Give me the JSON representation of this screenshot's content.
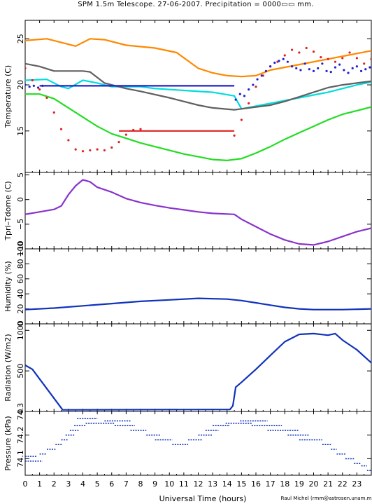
{
  "title": "SPM 1.5m Telescope. 27-06-2007. Precipitation = 0000▭▭ mm.",
  "xlabel": "Universal Time (hours)",
  "credit": "Raul Michel (rmm@astrosen.unam.mx)",
  "x_ticks": [
    "0",
    "1",
    "2",
    "3",
    "4",
    "5",
    "6",
    "7",
    "8",
    "9",
    "10",
    "11",
    "12",
    "13",
    "14",
    "15",
    "16",
    "17",
    "18",
    "19",
    "20",
    "21",
    "22",
    "23"
  ],
  "chart_data": [
    {
      "type": "line",
      "ylabel": "Temperature (C)",
      "xlim": [
        0,
        24
      ],
      "ylim": [
        10.5,
        27
      ],
      "y_ticks": [
        15,
        20,
        25
      ],
      "series": [
        {
          "color": "#ff8800",
          "style": "line",
          "x": [
            0,
            1.5,
            2.5,
            3.5,
            4.5,
            5.5,
            7,
            9,
            10.5,
            12,
            13,
            14,
            15,
            16,
            17,
            24
          ],
          "y": [
            24.8,
            25.0,
            24.6,
            24.2,
            25.0,
            24.9,
            24.3,
            24.0,
            23.5,
            21.8,
            21.3,
            21.0,
            20.9,
            21.0,
            21.6,
            23.7
          ]
        },
        {
          "color": "#00dddd",
          "style": "line",
          "x": [
            0,
            1.5,
            2.5,
            3,
            4,
            5,
            6,
            7,
            8,
            9,
            11,
            13,
            14.5,
            15,
            16,
            17,
            18,
            19,
            20,
            21,
            22,
            23,
            24
          ],
          "y": [
            20.5,
            20.6,
            19.8,
            19.6,
            20.5,
            20.2,
            19.8,
            19.8,
            19.8,
            19.6,
            19.4,
            19.2,
            18.8,
            17.4,
            17.7,
            18.0,
            18.3,
            18.6,
            18.9,
            19.2,
            19.6,
            20.0,
            20.3
          ]
        },
        {
          "color": "#606060",
          "style": "line",
          "x": [
            0,
            1,
            2,
            3,
            4,
            4.5,
            5.5,
            7,
            8,
            10,
            12,
            13,
            14.5,
            15,
            16,
            17,
            18,
            19,
            20,
            21,
            22,
            23,
            24
          ],
          "y": [
            22.3,
            22.0,
            21.5,
            21.5,
            21.5,
            21.4,
            20.2,
            19.6,
            19.3,
            18.6,
            17.8,
            17.5,
            17.3,
            17.4,
            17.6,
            17.8,
            18.2,
            18.7,
            19.2,
            19.7,
            20.0,
            20.2,
            20.4
          ]
        },
        {
          "color": "#22dd22",
          "style": "line",
          "x": [
            0,
            1,
            2,
            3,
            4,
            5,
            6,
            7,
            8,
            9,
            10,
            11,
            12,
            13,
            14,
            15,
            16,
            17,
            18,
            19,
            20,
            21,
            22,
            23,
            24
          ],
          "y": [
            19.0,
            19.0,
            18.5,
            17.5,
            16.5,
            15.5,
            14.7,
            14.2,
            13.7,
            13.3,
            12.9,
            12.5,
            12.2,
            11.9,
            11.8,
            12.0,
            12.6,
            13.3,
            14.1,
            14.8,
            15.5,
            16.2,
            16.8,
            17.2,
            17.6
          ]
        },
        {
          "color": "#2222cc",
          "style": "line",
          "x": [
            1,
            14.5
          ],
          "y": [
            19.9,
            19.9
          ]
        },
        {
          "color": "#dd2222",
          "style": "line",
          "x": [
            6.5,
            14.5
          ],
          "y": [
            15.0,
            15.0
          ]
        },
        {
          "color": "#dd2222",
          "style": "scatter",
          "x": [
            0,
            0.5,
            1,
            1.5,
            2,
            2.5,
            3,
            3.5,
            4,
            4.5,
            5,
            5.5,
            6,
            6.5,
            7,
            7.5,
            8,
            14.5,
            15,
            15.5,
            16,
            16.5,
            17,
            17.5,
            18,
            18.5,
            19,
            19.5,
            20,
            20.5,
            21,
            21.5,
            22,
            22.5,
            23,
            23.5,
            24
          ],
          "y": [
            21.8,
            20.5,
            19.5,
            18.6,
            17.0,
            15.2,
            14.0,
            13.0,
            12.8,
            12.9,
            13.0,
            12.9,
            13.2,
            13.8,
            14.6,
            15.1,
            15.2,
            14.5,
            16.2,
            18.0,
            19.8,
            21.0,
            22.0,
            22.5,
            23.2,
            23.8,
            23.5,
            24.0,
            23.6,
            23.0,
            22.8,
            22.5,
            22.9,
            23.5,
            22.9,
            22.3,
            22.8
          ]
        },
        {
          "color": "#2222cc",
          "style": "scatter",
          "x": [
            0,
            0.3,
            0.6,
            0.9,
            1.2,
            14.6,
            14.9,
            15.2,
            15.5,
            15.8,
            16.1,
            16.4,
            16.7,
            17.0,
            17.3,
            17.6,
            17.9,
            18.2,
            18.5,
            18.8,
            19.1,
            19.4,
            19.7,
            20.0,
            20.3,
            20.6,
            20.9,
            21.2,
            21.5,
            21.8,
            22.1,
            22.4,
            22.7,
            23.0,
            23.3,
            23.6,
            23.9
          ],
          "y": [
            20.0,
            19.8,
            19.9,
            19.7,
            19.9,
            18.4,
            19.0,
            18.8,
            19.5,
            20.0,
            20.6,
            21.0,
            21.5,
            22.0,
            22.4,
            22.6,
            22.8,
            22.5,
            22.0,
            21.8,
            21.6,
            22.3,
            21.7,
            21.5,
            21.8,
            22.3,
            21.5,
            21.4,
            21.9,
            22.2,
            21.6,
            21.3,
            21.8,
            22.0,
            21.5,
            21.7,
            21.9
          ]
        }
      ]
    },
    {
      "type": "line",
      "ylabel": "Tpri–Tdome (C)",
      "xlim": [
        0,
        24
      ],
      "ylim": [
        -10,
        5.5
      ],
      "y_ticks": [
        -10,
        -5,
        0,
        5
      ],
      "y_tick_labels": [
        "−10",
        "−5",
        "0",
        "5"
      ],
      "series": [
        {
          "color": "#8833cc",
          "style": "line",
          "x": [
            0,
            1,
            2,
            2.5,
            3,
            3.5,
            4,
            4.5,
            5,
            6,
            7,
            8,
            9,
            10,
            11,
            12,
            13,
            14.5,
            15,
            16,
            17,
            18,
            19,
            20,
            21,
            22,
            23,
            24
          ],
          "y": [
            -3.0,
            -2.5,
            -2.0,
            -1.3,
            1.0,
            2.8,
            4.0,
            3.6,
            2.5,
            1.5,
            0.2,
            -0.6,
            -1.2,
            -1.7,
            -2.1,
            -2.5,
            -2.8,
            -3.0,
            -4.0,
            -5.5,
            -7.0,
            -8.2,
            -9.0,
            -9.2,
            -8.5,
            -7.5,
            -6.5,
            -5.8
          ]
        }
      ]
    },
    {
      "type": "line",
      "ylabel": "Humidity (%)",
      "xlim": [
        0,
        24
      ],
      "ylim": [
        0,
        100
      ],
      "y_ticks": [
        0,
        20,
        40,
        60,
        80,
        100
      ],
      "y_tick_labels": [
        "0",
        "20",
        "40",
        "60",
        "80",
        "100"
      ],
      "series": [
        {
          "color": "#1133bb",
          "style": "line",
          "x": [
            0,
            2,
            4,
            6,
            8,
            10,
            12,
            14,
            15,
            16,
            17,
            18,
            19,
            20,
            22,
            24
          ],
          "y": [
            19,
            21,
            24,
            27,
            30,
            32,
            34,
            33,
            31,
            28,
            25,
            22,
            20,
            19,
            19,
            20
          ]
        }
      ]
    },
    {
      "type": "line",
      "ylabel": "Radiation (W/m2)",
      "xlim": [
        0,
        24
      ],
      "ylim": [
        0,
        1080
      ],
      "y_ticks": [
        0,
        500,
        1000
      ],
      "y_tick_labels": [
        "0",
        "500",
        "1000"
      ],
      "series": [
        {
          "color": "#1133bb",
          "style": "line",
          "x": [
            0,
            0.5,
            2.6,
            14.2,
            14.4,
            14.6,
            15,
            16,
            17,
            18,
            19,
            20,
            21,
            21.5,
            22,
            23,
            24
          ],
          "y": [
            570,
            520,
            20,
            25,
            70,
            300,
            360,
            520,
            690,
            860,
            950,
            960,
            940,
            960,
            880,
            760,
            600
          ]
        }
      ]
    },
    {
      "type": "scatter",
      "ylabel": "Pressure (kPa)",
      "xlim": [
        0,
        24
      ],
      "ylim": [
        74.03,
        74.3
      ],
      "y_ticks": [
        74.1,
        74.2,
        74.3
      ],
      "y_tick_labels": [
        "74.1",
        "74.2",
        "74.3"
      ],
      "series": [
        {
          "color": "#1133bb",
          "style": "steps",
          "segments": [
            [
              0.0,
              1.2,
              74.09
            ],
            [
              0.0,
              0.8,
              74.11
            ],
            [
              1.0,
              1.5,
              74.12
            ],
            [
              1.5,
              2.1,
              74.14
            ],
            [
              2.1,
              2.6,
              74.16
            ],
            [
              2.5,
              3.0,
              74.18
            ],
            [
              2.8,
              3.4,
              74.2
            ],
            [
              3.1,
              3.7,
              74.22
            ],
            [
              3.4,
              4.2,
              74.24
            ],
            [
              3.6,
              5.0,
              74.27
            ],
            [
              4.2,
              6.2,
              74.25
            ],
            [
              5.5,
              7.3,
              74.26
            ],
            [
              6.2,
              7.6,
              74.24
            ],
            [
              7.3,
              8.4,
              74.22
            ],
            [
              8.4,
              9.4,
              74.2
            ],
            [
              9.0,
              10.2,
              74.18
            ],
            [
              10.2,
              11.3,
              74.16
            ],
            [
              11.3,
              12.3,
              74.18
            ],
            [
              12.0,
              13.0,
              74.2
            ],
            [
              12.5,
              13.4,
              74.22
            ],
            [
              13.0,
              14.2,
              74.24
            ],
            [
              13.9,
              15.7,
              74.25
            ],
            [
              14.9,
              16.8,
              74.26
            ],
            [
              15.7,
              17.8,
              74.24
            ],
            [
              16.8,
              19.0,
              74.22
            ],
            [
              18.2,
              19.7,
              74.2
            ],
            [
              19.0,
              20.6,
              74.18
            ],
            [
              20.6,
              21.2,
              74.16
            ],
            [
              21.2,
              21.6,
              74.14
            ],
            [
              21.6,
              22.2,
              74.12
            ],
            [
              22.2,
              22.8,
              74.1
            ],
            [
              22.8,
              23.3,
              74.08
            ],
            [
              23.3,
              23.7,
              74.07
            ],
            [
              23.7,
              24.0,
              74.05
            ]
          ]
        }
      ]
    }
  ]
}
